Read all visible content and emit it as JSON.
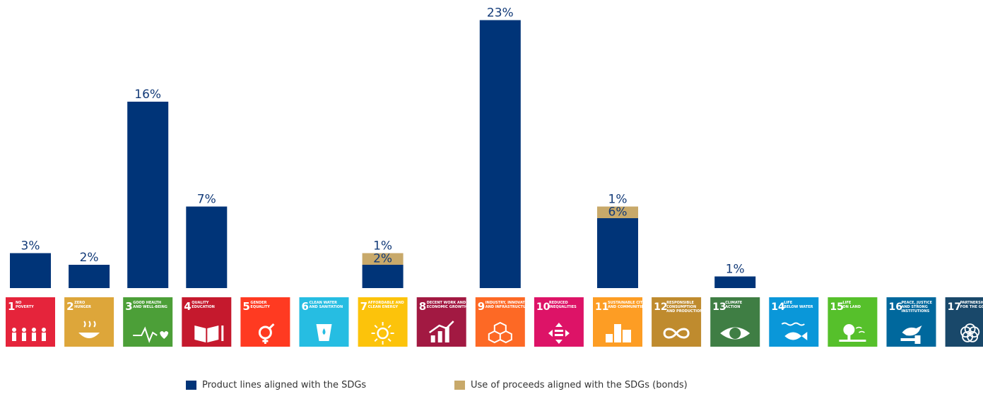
{
  "colors": {
    "primary": "#003478",
    "secondary": "#c8a96a",
    "label": "#123a78"
  },
  "goals": [
    {
      "num": "1",
      "label": [
        "NO",
        "POVERTY"
      ],
      "color": "#e5243b",
      "icon": "people-icon"
    },
    {
      "num": "2",
      "label": [
        "ZERO",
        "HUNGER"
      ],
      "color": "#dda63a",
      "icon": "bowl-icon"
    },
    {
      "num": "3",
      "label": [
        "GOOD HEALTH",
        "AND WELL-BEING"
      ],
      "color": "#4c9f38",
      "icon": "heartbeat-icon"
    },
    {
      "num": "4",
      "label": [
        "QUALITY",
        "EDUCATION"
      ],
      "color": "#c5192d",
      "icon": "book-icon"
    },
    {
      "num": "5",
      "label": [
        "GENDER",
        "EQUALITY"
      ],
      "color": "#ff3a21",
      "icon": "gender-icon"
    },
    {
      "num": "6",
      "label": [
        "CLEAN WATER",
        "AND SANITATION"
      ],
      "color": "#26bde2",
      "icon": "water-icon"
    },
    {
      "num": "7",
      "label": [
        "AFFORDABLE AND",
        "CLEAN ENERGY"
      ],
      "color": "#fcc30b",
      "icon": "sun-icon"
    },
    {
      "num": "8",
      "label": [
        "DECENT WORK AND",
        "ECONOMIC GROWTH"
      ],
      "color": "#a21942",
      "icon": "growth-chart-icon"
    },
    {
      "num": "9",
      "label": [
        "INDUSTRY, INNOVATION",
        "AND INFRASTRUCTURE"
      ],
      "color": "#fd6925",
      "icon": "cubes-icon"
    },
    {
      "num": "10",
      "label": [
        "REDUCED",
        "INEQUALITIES"
      ],
      "color": "#dd1367",
      "icon": "equals-arrows-icon"
    },
    {
      "num": "11",
      "label": [
        "SUSTAINABLE CITIES",
        "AND COMMUNITIES"
      ],
      "color": "#fd9d24",
      "icon": "buildings-icon"
    },
    {
      "num": "12",
      "label": [
        "RESPONSIBLE",
        "CONSUMPTION",
        "AND PRODUCTION"
      ],
      "color": "#bf8b2e",
      "icon": "infinity-icon"
    },
    {
      "num": "13",
      "label": [
        "CLIMATE",
        "ACTION"
      ],
      "color": "#3f7e44",
      "icon": "eye-globe-icon"
    },
    {
      "num": "14",
      "label": [
        "LIFE",
        "BELOW WATER"
      ],
      "color": "#0a97d9",
      "icon": "fish-icon"
    },
    {
      "num": "15",
      "label": [
        "LIFE",
        "ON LAND"
      ],
      "color": "#56c02b",
      "icon": "tree-icon"
    },
    {
      "num": "16",
      "label": [
        "PEACE, JUSTICE",
        "AND STRONG",
        "INSTITUTIONS"
      ],
      "color": "#00689d",
      "icon": "dove-icon"
    },
    {
      "num": "17",
      "label": [
        "PARTNERSHIPS",
        "FOR THE GOALS"
      ],
      "color": "#19486a",
      "icon": "flower-rings-icon"
    }
  ],
  "chart_data": {
    "type": "bar",
    "stacked": true,
    "categories": [
      "1",
      "2",
      "3",
      "4",
      "5",
      "6",
      "7",
      "8",
      "9",
      "10",
      "11",
      "12",
      "13",
      "14",
      "15",
      "16",
      "17"
    ],
    "series": [
      {
        "name": "Product lines aligned with the SDGs",
        "values": [
          3,
          2,
          16,
          7,
          0,
          0,
          2,
          0,
          23,
          0,
          6,
          0,
          1,
          0,
          0,
          0,
          0
        ],
        "labels": [
          "3%",
          "2%",
          "16%",
          "7%",
          "",
          "",
          "2%",
          "",
          "23%",
          "",
          "6%",
          "",
          "1%",
          "",
          "",
          "",
          ""
        ]
      },
      {
        "name": "Use of proceeds aligned with the SDGs (bonds)",
        "values": [
          0,
          0,
          0,
          0,
          0,
          0,
          1,
          0,
          0,
          0,
          1,
          0,
          0,
          0,
          0,
          0,
          0
        ],
        "labels": [
          "",
          "",
          "",
          "",
          "",
          "",
          "1%",
          "",
          "",
          "",
          "1%",
          "",
          "",
          "",
          "",
          "",
          ""
        ]
      }
    ],
    "ylim": [
      0,
      23
    ],
    "legend_position": "bottom",
    "grid": false
  },
  "legend": [
    {
      "label": "Product lines aligned with the SDGs"
    },
    {
      "label": "Use of proceeds aligned with the SDGs (bonds)"
    }
  ]
}
